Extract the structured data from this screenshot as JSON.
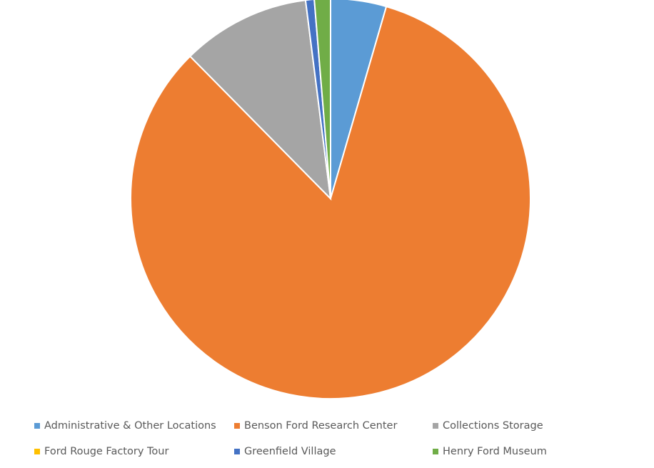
{
  "chart_data": {
    "type": "pie",
    "title": "",
    "start_angle": "12 o'clock, clockwise",
    "legend_placement": "bottom",
    "slices": [
      {
        "label": "Administrative & Other  Locations",
        "value": 4.5,
        "color": "#5B9BD5"
      },
      {
        "label": "Benson Ford Research Center",
        "value": 83.1,
        "color": "#ED7D31"
      },
      {
        "label": "Collections Storage",
        "value": 10.4,
        "color": "#A5A5A5"
      },
      {
        "label": "Ford Rouge Factory Tour",
        "value": 0,
        "color": "#FFC000"
      },
      {
        "label": "Greenfield Village",
        "value": 0.7,
        "color": "#4472C4"
      },
      {
        "label": "Henry Ford Museum",
        "value": 1.3,
        "color": "#70AD47"
      }
    ]
  }
}
